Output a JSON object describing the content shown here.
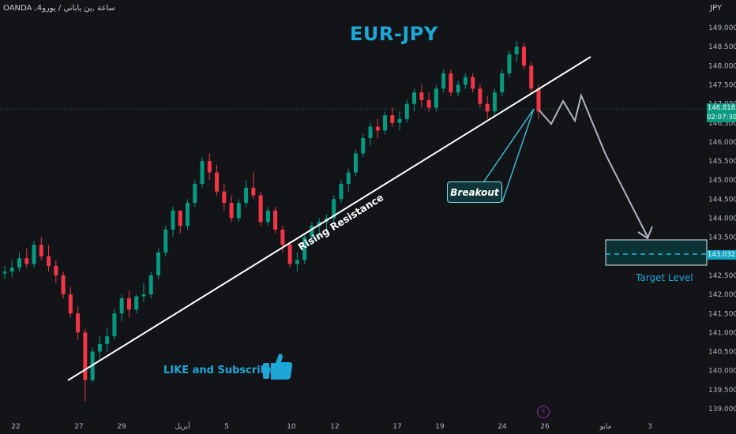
{
  "header": {
    "source": "OANDA ,4ساعة ,ين ياباني / يورو",
    "currency": "JPY"
  },
  "title": "EUR-JPY",
  "annotations": {
    "resistance_label": "Rising Resistance",
    "breakout_label": "Breakout",
    "cta": "LIKE and Subscribe",
    "target_label": "Target Level"
  },
  "price_badge": {
    "price": "146.818",
    "countdown": "02:07:30"
  },
  "target_badge": {
    "price": "143.032"
  },
  "colors": {
    "up": "#089981",
    "down": "#f23645",
    "accent": "#1ea7d6",
    "trendline": "#ffffff",
    "projection": "#b2b5be"
  },
  "chart_data": {
    "type": "candlestick",
    "title": "EUR-JPY",
    "ylim": [
      138.9,
      149.3
    ],
    "y_ticks": [
      "149.000",
      "148.500",
      "148.000",
      "147.500",
      "147.000",
      "146.500",
      "146.000",
      "145.500",
      "145.000",
      "144.500",
      "144.000",
      "143.500",
      "143.000",
      "142.500",
      "142.000",
      "141.500",
      "141.000",
      "140.500",
      "140.000",
      "139.500",
      "139.000"
    ],
    "x_ticks": [
      "22",
      "27",
      "29",
      "أبريل",
      "5",
      "10",
      "12",
      "17",
      "19",
      "24",
      "26",
      "مايو",
      "3"
    ],
    "series": [
      {
        "values": [
          [
            142.55,
            142.75,
            142.4,
            142.6
          ],
          [
            142.6,
            142.9,
            142.45,
            142.7
          ],
          [
            142.7,
            143.1,
            142.6,
            142.95
          ],
          [
            142.95,
            143.2,
            142.7,
            142.8
          ],
          [
            142.8,
            143.4,
            142.7,
            143.3
          ],
          [
            143.3,
            143.5,
            142.9,
            143.0
          ],
          [
            143.0,
            143.3,
            142.6,
            142.75
          ],
          [
            142.75,
            142.9,
            142.3,
            142.5
          ],
          [
            142.5,
            142.6,
            141.9,
            142.0
          ],
          [
            142.0,
            142.2,
            141.4,
            141.5
          ],
          [
            141.5,
            141.7,
            140.8,
            141.0
          ],
          [
            141.0,
            141.1,
            139.2,
            139.75
          ],
          [
            139.75,
            140.6,
            139.7,
            140.5
          ],
          [
            140.5,
            140.9,
            140.3,
            140.7
          ],
          [
            140.7,
            141.1,
            140.5,
            140.9
          ],
          [
            140.9,
            141.6,
            140.8,
            141.5
          ],
          [
            141.5,
            142.0,
            141.3,
            141.9
          ],
          [
            141.9,
            142.1,
            141.4,
            141.6
          ],
          [
            141.6,
            142.0,
            141.5,
            141.95
          ],
          [
            141.95,
            142.3,
            141.8,
            142.0
          ],
          [
            142.0,
            142.6,
            141.9,
            142.5
          ],
          [
            142.5,
            143.2,
            142.4,
            143.1
          ],
          [
            143.1,
            143.8,
            143.0,
            143.7
          ],
          [
            143.7,
            144.3,
            143.5,
            144.2
          ],
          [
            144.2,
            144.1,
            143.6,
            143.8
          ],
          [
            143.8,
            144.5,
            143.7,
            144.4
          ],
          [
            144.4,
            145.0,
            144.3,
            144.9
          ],
          [
            144.9,
            145.6,
            144.8,
            145.5
          ],
          [
            145.5,
            145.7,
            145.0,
            145.2
          ],
          [
            145.2,
            145.4,
            144.6,
            144.7
          ],
          [
            144.7,
            144.9,
            144.2,
            144.4
          ],
          [
            144.4,
            144.6,
            143.9,
            144.0
          ],
          [
            144.0,
            144.5,
            143.9,
            144.4
          ],
          [
            144.4,
            145.0,
            144.3,
            144.8
          ],
          [
            144.8,
            145.2,
            144.5,
            144.6
          ],
          [
            144.6,
            144.7,
            143.8,
            143.9
          ],
          [
            143.9,
            144.3,
            143.8,
            144.2
          ],
          [
            144.2,
            144.3,
            143.6,
            143.7
          ],
          [
            143.7,
            143.8,
            143.1,
            143.3
          ],
          [
            143.3,
            143.4,
            142.7,
            142.8
          ],
          [
            142.8,
            143.1,
            142.6,
            142.9
          ],
          [
            142.9,
            143.6,
            142.8,
            143.5
          ],
          [
            143.5,
            143.9,
            143.3,
            143.8
          ],
          [
            143.8,
            144.0,
            143.5,
            143.9
          ],
          [
            143.9,
            144.1,
            143.7,
            144.0
          ],
          [
            144.0,
            144.6,
            143.9,
            144.5
          ],
          [
            144.5,
            145.0,
            144.4,
            144.9
          ],
          [
            144.9,
            145.3,
            144.7,
            145.2
          ],
          [
            145.2,
            145.8,
            145.1,
            145.7
          ],
          [
            145.7,
            146.2,
            145.6,
            146.1
          ],
          [
            146.1,
            146.5,
            145.9,
            146.4
          ],
          [
            146.4,
            146.6,
            146.1,
            146.3
          ],
          [
            146.3,
            146.8,
            146.2,
            146.7
          ],
          [
            146.7,
            146.9,
            146.4,
            146.5
          ],
          [
            146.5,
            146.8,
            146.3,
            146.6
          ],
          [
            146.6,
            147.1,
            146.5,
            147.0
          ],
          [
            147.0,
            147.4,
            146.8,
            147.3
          ],
          [
            147.3,
            147.5,
            146.9,
            147.1
          ],
          [
            147.1,
            147.3,
            146.8,
            146.9
          ],
          [
            146.9,
            147.5,
            146.8,
            147.4
          ],
          [
            147.4,
            147.9,
            147.3,
            147.8
          ],
          [
            147.8,
            147.9,
            147.2,
            147.3
          ],
          [
            147.3,
            147.6,
            147.2,
            147.5
          ],
          [
            147.5,
            147.8,
            147.4,
            147.7
          ],
          [
            147.7,
            147.8,
            147.3,
            147.4
          ],
          [
            147.4,
            147.5,
            146.9,
            147.0
          ],
          [
            147.0,
            147.2,
            146.6,
            146.8
          ],
          [
            146.8,
            147.4,
            146.7,
            147.3
          ],
          [
            147.3,
            147.9,
            147.2,
            147.8
          ],
          [
            147.8,
            148.4,
            147.7,
            148.3
          ],
          [
            148.3,
            148.65,
            148.1,
            148.5
          ],
          [
            148.5,
            148.6,
            147.9,
            148.0
          ],
          [
            148.0,
            148.1,
            147.3,
            147.4
          ],
          [
            147.4,
            147.5,
            146.6,
            146.8
          ]
        ]
      }
    ]
  }
}
